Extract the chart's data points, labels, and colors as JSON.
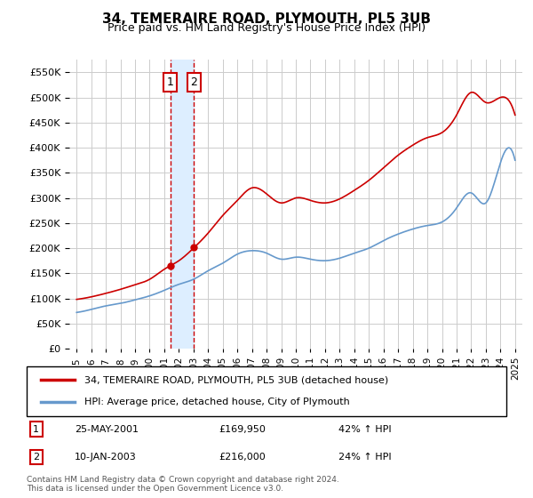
{
  "title": "34, TEMERAIRE ROAD, PLYMOUTH, PL5 3UB",
  "subtitle": "Price paid vs. HM Land Registry's House Price Index (HPI)",
  "legend_line1": "34, TEMERAIRE ROAD, PLYMOUTH, PL5 3UB (detached house)",
  "legend_line2": "HPI: Average price, detached house, City of Plymouth",
  "footnote": "Contains HM Land Registry data © Crown copyright and database right 2024.\nThis data is licensed under the Open Government Licence v3.0.",
  "sale1_label": "1",
  "sale1_date": "25-MAY-2001",
  "sale1_price": "£169,950",
  "sale1_hpi": "42% ↑ HPI",
  "sale2_label": "2",
  "sale2_date": "10-JAN-2003",
  "sale2_price": "£216,000",
  "sale2_hpi": "24% ↑ HPI",
  "red_color": "#cc0000",
  "blue_color": "#6699cc",
  "shade_color": "#ddeeff",
  "grid_color": "#cccccc",
  "ylim": [
    0,
    575000
  ],
  "yticks": [
    0,
    50000,
    100000,
    150000,
    200000,
    250000,
    300000,
    350000,
    400000,
    450000,
    500000,
    550000
  ],
  "sale1_x": 2001.4,
  "sale2_x": 2003.04,
  "hpi_years": [
    1995,
    1996,
    1997,
    1998,
    1999,
    2000,
    2001,
    2002,
    2003,
    2004,
    2005,
    2006,
    2007,
    2008,
    2009,
    2010,
    2011,
    2012,
    2013,
    2014,
    2015,
    2016,
    2017,
    2018,
    2019,
    2020,
    2021,
    2022,
    2023,
    2024,
    2025
  ],
  "hpi_values": [
    72000,
    78000,
    85000,
    90000,
    97000,
    105000,
    116000,
    128000,
    138000,
    155000,
    170000,
    188000,
    195000,
    190000,
    178000,
    182000,
    178000,
    175000,
    180000,
    190000,
    200000,
    215000,
    228000,
    238000,
    245000,
    252000,
    280000,
    310000,
    290000,
    370000,
    375000
  ],
  "red_years": [
    1995,
    1996,
    1997,
    1998,
    1999,
    2000,
    2001,
    2002,
    2003,
    2004,
    2005,
    2006,
    2007,
    2008,
    2009,
    2010,
    2011,
    2012,
    2013,
    2014,
    2015,
    2016,
    2017,
    2018,
    2019,
    2020,
    2021,
    2022,
    2023,
    2024,
    2025
  ],
  "red_values": [
    98000,
    103000,
    110000,
    118000,
    127000,
    138000,
    158000,
    175000,
    200000,
    230000,
    265000,
    295000,
    320000,
    308000,
    290000,
    300000,
    295000,
    290000,
    298000,
    315000,
    335000,
    360000,
    385000,
    405000,
    420000,
    430000,
    465000,
    510000,
    490000,
    500000,
    465000
  ]
}
